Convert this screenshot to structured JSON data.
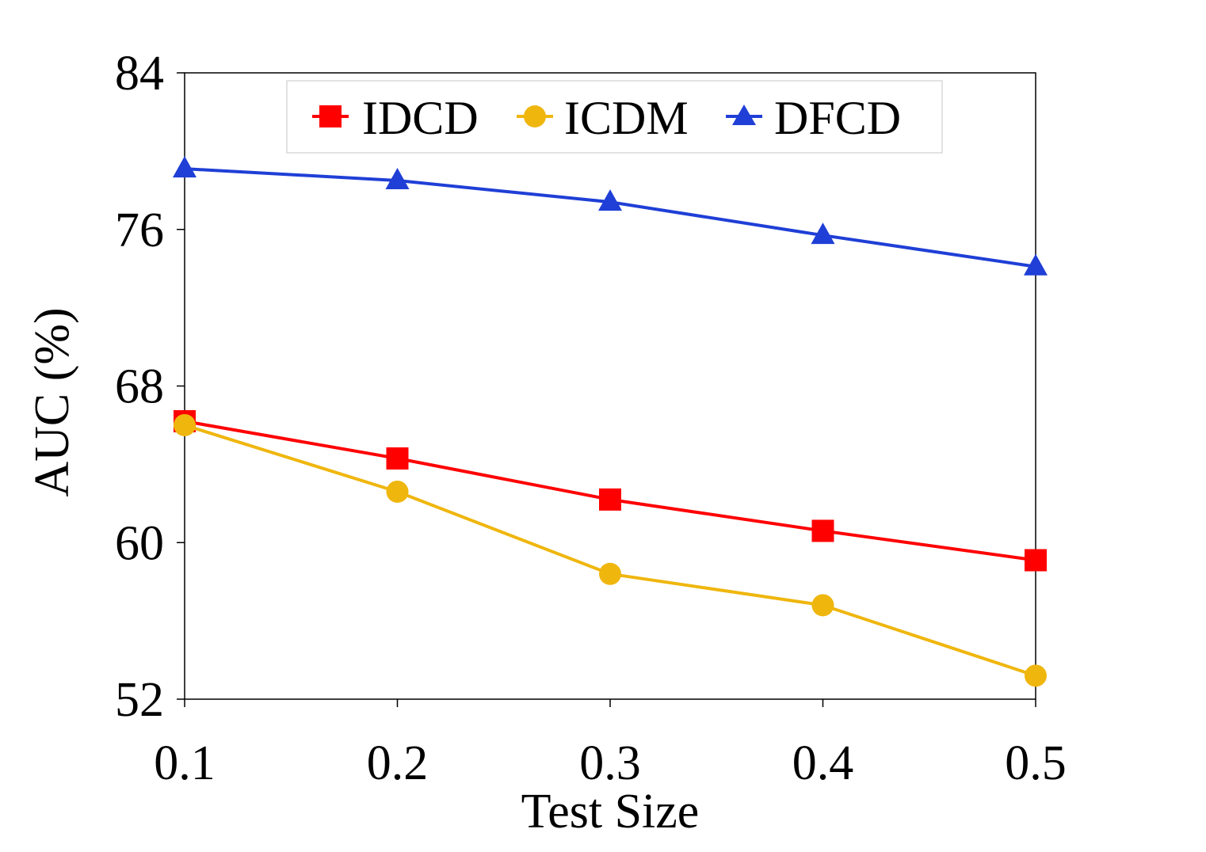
{
  "chart_data": {
    "type": "line",
    "title": "",
    "xlabel": "Test Size",
    "ylabel": "AUC (%)",
    "x": [
      0.1,
      0.2,
      0.3,
      0.4,
      0.5
    ],
    "x_tick_labels": [
      "0.1",
      "0.2",
      "0.3",
      "0.4",
      "0.5"
    ],
    "y_ticks": [
      52,
      60,
      68,
      76,
      84
    ],
    "y_tick_labels": [
      "52",
      "60",
      "68",
      "76",
      "84"
    ],
    "ylim": [
      52,
      84
    ],
    "grid": false,
    "legend_position": "top",
    "series": [
      {
        "name": "IDCD",
        "marker": "square",
        "color": "#ff0000",
        "values": [
          66.2,
          64.3,
          62.2,
          60.6,
          59.1
        ]
      },
      {
        "name": "ICDM",
        "marker": "circle",
        "color": "#efb60e",
        "values": [
          66.0,
          62.6,
          58.4,
          56.8,
          53.2
        ]
      },
      {
        "name": "DFCD",
        "marker": "triangle",
        "color": "#1f3fd6",
        "values": [
          79.1,
          78.5,
          77.4,
          75.7,
          74.1
        ]
      }
    ]
  }
}
